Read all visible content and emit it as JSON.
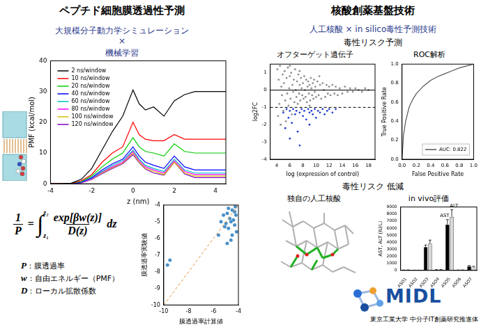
{
  "left": {
    "title": "ペプチド細胞膜透過性予測",
    "subtitle": [
      "大規模分子動力学シミュレーション",
      "×",
      "機械学習"
    ],
    "formula": {
      "lhs_numerator": "1",
      "lhs_denominator": "P",
      "equals": "=",
      "integral": "∫",
      "lower": "z₁",
      "upper": "z₂",
      "numerator": "exp[βw(z)]",
      "denominator": "D(z)",
      "differential": "dz"
    },
    "definitions": [
      "P：膜透過率",
      "w：自由エネルギー（PMF）",
      "D：ローカル拡散係数"
    ]
  },
  "right": {
    "title": "核酸創薬基盤技術",
    "subtitle": "人工核酸 × in silico毒性予測技術",
    "sections": [
      "毒性リスク予測",
      "毒性リスク 低減"
    ],
    "molecule_caption": "独自の人工核酸"
  },
  "logo": {
    "name": "MIDL",
    "caption": "東京工業大学 中分子IT創薬研究推進体"
  },
  "chart_data": [
    {
      "type": "line",
      "x_label": "z (nm)",
      "y_label": "PMF (kcal/mol)",
      "x": [
        -4,
        -3.5,
        -3,
        -2.5,
        -2,
        -1.5,
        -1,
        -0.5,
        0,
        0.3,
        0.6,
        1,
        1.5,
        2,
        2.5,
        3,
        3.5,
        4,
        4.5
      ],
      "series": [
        {
          "name": "2 ns/window",
          "color": "#000000",
          "values": [
            0,
            0,
            0.2,
            1.5,
            5,
            11,
            17,
            22,
            30.5,
            26,
            24,
            25,
            22,
            27,
            29,
            30,
            30,
            30,
            30
          ]
        },
        {
          "name": "10 ns/window",
          "color": "#ff0000",
          "values": [
            0,
            0,
            0.1,
            1,
            3,
            7,
            10,
            12,
            20,
            16,
            14.5,
            14,
            14,
            16,
            14.5,
            14.5,
            14.5,
            14.5,
            14.5
          ]
        },
        {
          "name": "20 ns/window",
          "color": "#00cc00",
          "values": [
            0,
            0,
            0.1,
            0.8,
            2.5,
            5.5,
            8,
            10,
            15,
            12,
            10.5,
            10,
            9,
            13,
            10.5,
            10,
            10,
            10,
            10
          ]
        },
        {
          "name": "40 ns/window",
          "color": "#0000ff",
          "values": [
            0,
            0,
            0,
            0.5,
            2,
            4.5,
            6.5,
            8,
            12,
            9,
            7,
            6,
            5,
            9,
            5.5,
            4.5,
            4.5,
            4.5,
            4.5
          ]
        },
        {
          "name": "60 ns/window",
          "color": "#00c0c0",
          "values": [
            0,
            0,
            0,
            0.5,
            1.8,
            4,
            6,
            7.5,
            11,
            8,
            6,
            5,
            4,
            8,
            4.5,
            3.5,
            3.5,
            3.5,
            3.5
          ]
        },
        {
          "name": "80 ns/window",
          "color": "#ff00ff",
          "values": [
            0,
            0,
            0,
            0.4,
            1.6,
            3.8,
            5.5,
            7,
            10.5,
            7.5,
            5.5,
            4.5,
            3.5,
            7.5,
            4,
            3,
            3,
            3,
            3
          ]
        },
        {
          "name": "100 ns/window",
          "color": "#d4c000",
          "values": [
            0,
            0,
            0,
            0.4,
            1.5,
            3.5,
            5.2,
            6.7,
            10,
            7,
            5,
            4,
            3,
            7,
            3.5,
            2.5,
            2.5,
            2.5,
            2.5
          ]
        },
        {
          "name": "120 ns/window",
          "color": "#8000c0",
          "values": [
            0,
            0,
            0,
            0.3,
            1.4,
            3.3,
            5,
            6.5,
            9.5,
            6.8,
            4.8,
            3.5,
            2.8,
            7,
            3.2,
            2,
            2,
            2,
            2
          ]
        }
      ],
      "xlim": [
        -4,
        4.5
      ],
      "xticks": [
        -4,
        -2,
        0,
        2,
        4
      ],
      "ylim": [
        0,
        40
      ],
      "yticks": [
        0,
        10,
        20,
        30,
        40
      ],
      "grid": false,
      "legend": "top left"
    },
    {
      "type": "scatter",
      "x_label": "膜透過率計算値",
      "y_label": "膜透過率実験値",
      "x": [
        -9.7,
        -9.5,
        -5.4,
        -5.2,
        -5.0,
        -4.9,
        -4.8,
        -4.7,
        -4.6,
        -4.5,
        -4.4,
        -4.3,
        -4.2,
        -4.15,
        -4.6,
        -5.6,
        -4.8,
        -4.3,
        -5.1,
        -4.5,
        -4.9,
        -4.25
      ],
      "values": [
        -7.6,
        -7.3,
        -5.0,
        -4.6,
        -5.1,
        -4.5,
        -5.4,
        -4.8,
        -5.0,
        -4.3,
        -4.9,
        -5.2,
        -4.6,
        -5.6,
        -6.1,
        -5.8,
        -4.2,
        -4.4,
        -5.3,
        -5.8,
        -6.3,
        -4.1
      ],
      "color": "#4a90c8",
      "marker": "circle",
      "reference_lines": [
        {
          "x": [
            -10,
            -4
          ],
          "y": [
            -10,
            -4
          ],
          "color": "#e8913a",
          "line_style": "dashed"
        }
      ],
      "xlim": [
        -10,
        -4
      ],
      "xticks": [
        -10,
        -8,
        -6,
        -4
      ],
      "ylim": [
        -10,
        -4
      ],
      "yticks": [
        -10,
        -9,
        -8,
        -7,
        -6,
        -5,
        -4
      ],
      "grid": false
    },
    {
      "type": "scatter",
      "title": "オフターゲット遺伝子",
      "x_label": "log (expression of control)",
      "y_label": "log2FC",
      "series": [
        {
          "color": "#8c8c8c",
          "marker": "circle",
          "x": [
            4.1,
            4.2,
            4.3,
            4.4,
            4.5,
            4.6,
            4.7,
            4.8,
            4.9,
            5.0,
            5.1,
            5.2,
            5.3,
            5.4,
            5.5,
            5.6,
            5.7,
            5.8,
            5.9,
            6.0,
            6.1,
            6.2,
            6.3,
            6.4,
            6.5,
            6.6,
            6.7,
            6.8,
            6.9,
            7.0,
            7.1,
            7.2,
            7.3,
            7.4,
            7.5,
            7.6,
            7.7,
            7.8,
            7.9,
            8.0,
            8.1,
            8.2,
            8.3,
            8.4,
            8.5,
            8.6,
            8.7,
            8.8,
            8.9,
            9.0,
            9.1,
            9.2,
            9.3,
            9.4,
            9.5,
            9.6,
            9.7,
            9.8,
            9.9,
            10.0,
            10.2,
            10.4,
            10.6,
            10.8,
            11.0,
            11.2,
            11.4,
            11.6,
            11.8,
            12.0,
            12.2,
            12.5,
            12.8,
            13.0,
            13.3,
            13.6,
            14.0,
            14.4,
            14.8,
            15.2,
            15.6,
            16.0,
            16.5,
            17.0,
            17.5,
            18.0,
            10.5,
            9.0,
            7.5,
            6.0
          ],
          "values": [
            1.2,
            -1.5,
            0.6,
            -0.8,
            1.4,
            -2.0,
            0.2,
            -0.3,
            0.9,
            -1.2,
            0.4,
            1.1,
            -0.6,
            -1.8,
            0.7,
            -0.2,
            1.3,
            -0.9,
            0.1,
            0.8,
            -0.5,
            1.0,
            -1.4,
            0.3,
            -0.1,
            0.6,
            -0.7,
            1.2,
            0.0,
            -0.4,
            0.5,
            -0.8,
            0.9,
            -0.2,
            0.3,
            -0.6,
            0.7,
            0.1,
            -0.3,
            0.4,
            -0.5,
            0.8,
            0.0,
            -0.4,
            0.6,
            -0.7,
            0.2,
            0.5,
            -0.2,
            0.3,
            -0.6,
            0.7,
            0.1,
            -0.3,
            0.4,
            -0.5,
            0.6,
            -0.1,
            0.2,
            -0.4,
            0.5,
            -0.3,
            0.3,
            -0.5,
            0.4,
            0.0,
            -0.4,
            0.3,
            -0.2,
            0.2,
            -0.3,
            0.3,
            -0.2,
            0.2,
            -0.3,
            0.1,
            -0.2,
            0.2,
            -0.1,
            0.1,
            -0.1,
            0.1,
            0.0,
            -0.1,
            0.1,
            0.0,
            0.8,
            -0.9,
            1.1,
            1.4
          ]
        },
        {
          "color": "#2040d0",
          "marker": "circle",
          "x": [
            5.0,
            5.5,
            5.8,
            6.0,
            6.3,
            6.5,
            6.8,
            7.0,
            7.2,
            7.5,
            7.8,
            8.0,
            8.2,
            8.5,
            8.8,
            9.0,
            9.3,
            9.5,
            9.8,
            10.0,
            10.3,
            10.6,
            11.0,
            11.3,
            11.7,
            12.0,
            12.5,
            13.0,
            6.0,
            7.5,
            9.0,
            5.3
          ],
          "values": [
            -1.3,
            -1.1,
            -1.6,
            -1.2,
            -1.9,
            -1.1,
            -1.4,
            -1.2,
            -2.4,
            -1.3,
            -1.1,
            -1.5,
            -1.2,
            -1.7,
            -1.1,
            -1.3,
            -1.2,
            -1.4,
            -1.1,
            -1.6,
            -1.2,
            -1.3,
            -1.1,
            -1.4,
            -1.2,
            -1.1,
            -1.3,
            -1.1,
            -2.8,
            -3.2,
            -2.0,
            -2.2
          ]
        }
      ],
      "reference_lines": [
        {
          "y": 0,
          "color": "#000000",
          "line_style": "solid"
        },
        {
          "y": -1,
          "color": "#000000",
          "line_style": "dashed"
        }
      ],
      "xlim": [
        3,
        19
      ],
      "xticks": [
        4,
        6,
        8,
        10,
        12,
        14,
        16,
        18
      ],
      "ylim": [
        -4,
        1.5
      ],
      "yticks": [
        -4,
        -3,
        -2,
        -1,
        0,
        1
      ],
      "grid": false
    },
    {
      "type": "line",
      "title": "ROC解析",
      "x_label": "False Positive Rate",
      "y_label": "True Positive Rate",
      "x": [
        0,
        0.02,
        0.05,
        0.1,
        0.15,
        0.2,
        0.3,
        0.4,
        0.5,
        0.6,
        0.7,
        0.8,
        0.9,
        1
      ],
      "series": [
        {
          "name": "AUC: 0.822",
          "color": "#555555",
          "values": [
            0,
            0.25,
            0.4,
            0.55,
            0.63,
            0.69,
            0.77,
            0.83,
            0.87,
            0.9,
            0.93,
            0.96,
            0.98,
            1
          ]
        }
      ],
      "xlim": [
        0,
        1
      ],
      "xticks": [
        {
          "value": 0,
          "label": "0.0"
        },
        0.2,
        0.4,
        0.6,
        0.8,
        {
          "value": 1,
          "label": "1.0"
        }
      ],
      "ylim": [
        0,
        1
      ],
      "yticks": [
        {
          "value": 0,
          "label": "0.0"
        },
        0.2,
        0.4,
        0.6,
        0.8,
        {
          "value": 1,
          "label": "1.0"
        }
      ],
      "grid": false,
      "legend": "bottom right"
    },
    {
      "type": "bar",
      "title": "in vivo評価",
      "y_label": "AST, ALT (IU/L)",
      "categories": [
        "ASO1",
        "ASO2",
        "ASO3",
        "ASO4",
        "ASO5",
        "ASO6",
        "ASO7"
      ],
      "series": [
        {
          "name": "AST",
          "color": "#000000",
          "values": [
            40,
            30,
            3300,
            80,
            6500,
            40,
            600
          ],
          "errors": [
            20,
            10,
            300,
            30,
            700,
            20,
            100
          ]
        },
        {
          "name": "ALT",
          "color": "#d9d9d9",
          "values": [
            50,
            30,
            3800,
            90,
            7600,
            50,
            500
          ],
          "errors": [
            20,
            10,
            500,
            30,
            1000,
            20,
            80
          ]
        }
      ],
      "annotations": [
        {
          "text": "AST",
          "x": "ASO5",
          "series": "AST"
        },
        {
          "text": "ALT",
          "x": "ASO5",
          "series": "ALT"
        }
      ],
      "ylim": [
        0,
        9000
      ],
      "yticks": [
        0,
        1000,
        2000,
        3000,
        4000,
        5000,
        6000,
        7000,
        8000,
        9000
      ],
      "grid": false
    }
  ]
}
